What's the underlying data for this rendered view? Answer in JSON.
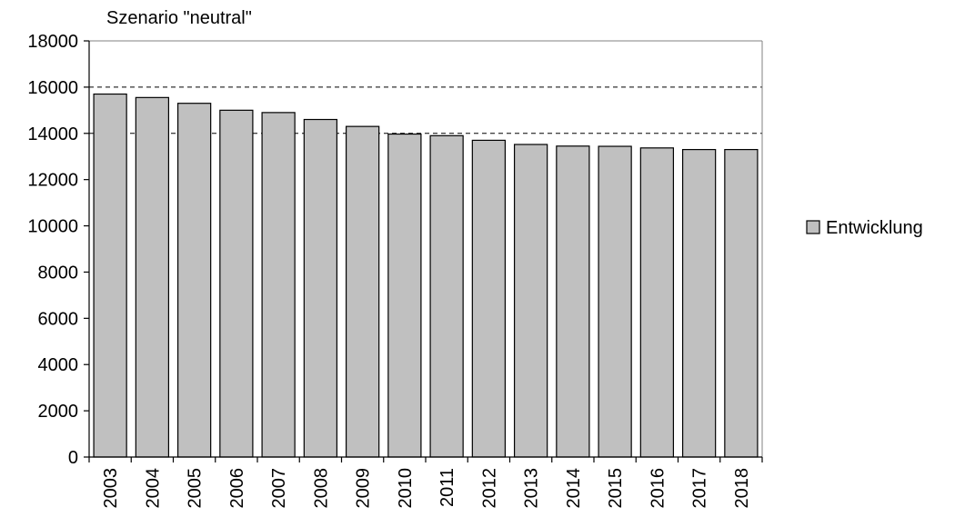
{
  "chart_data": {
    "type": "bar",
    "title": "Szenario \"neutral\"",
    "xlabel": "",
    "ylabel": "",
    "categories": [
      "2003",
      "2004",
      "2005",
      "2006",
      "2007",
      "2008",
      "2009",
      "2010",
      "2011",
      "2012",
      "2013",
      "2014",
      "2015",
      "2016",
      "2017",
      "2018"
    ],
    "series": [
      {
        "name": "Entwicklung",
        "color": "#c0c0c0",
        "values": [
          15700,
          15550,
          15300,
          15000,
          14900,
          14600,
          14300,
          13970,
          13900,
          13700,
          13520,
          13450,
          13440,
          13370,
          13300,
          13300
        ]
      }
    ],
    "ylim": [
      0,
      18000
    ],
    "yticks": [
      0,
      2000,
      4000,
      6000,
      8000,
      10000,
      12000,
      14000,
      16000,
      18000
    ],
    "gridlines": [
      14000,
      16000
    ],
    "grid": "dashed horizontal at 14000 and 16000",
    "legend": "right",
    "x_tick_rotation": "vertical"
  }
}
